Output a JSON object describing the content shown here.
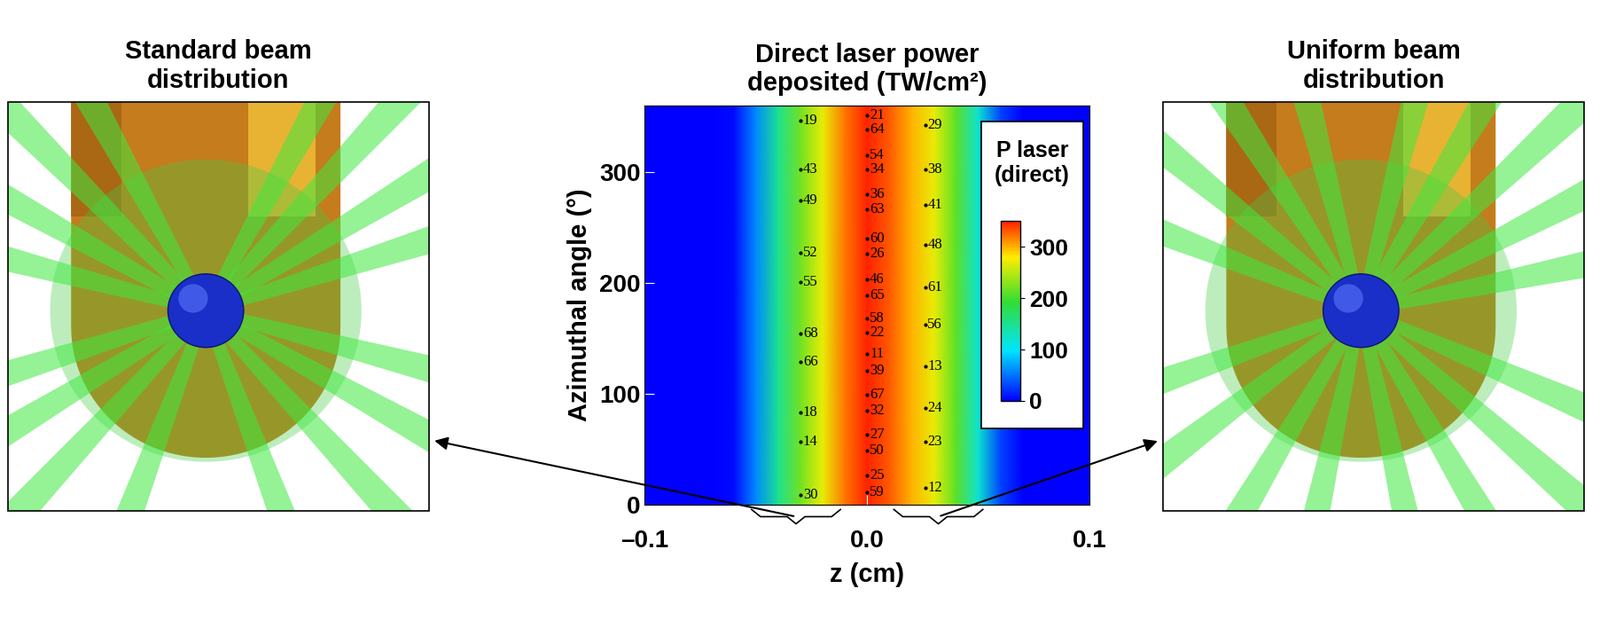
{
  "panels": {
    "left": {
      "title": "Standard beam\ndistribution"
    },
    "right": {
      "title": "Uniform beam\ndistribution"
    }
  },
  "chart_data": {
    "type": "heatmap",
    "title": "Direct laser power\ndeposited (TW/cm²)",
    "x_label": "z (cm)",
    "y_label": "Azimuthal angle (°)",
    "xlim": [
      -0.1,
      0.1
    ],
    "ylim": [
      0,
      360
    ],
    "xticks": [
      {
        "value": -0.1,
        "label": "–0.1"
      },
      {
        "value": 0,
        "label": "0.0"
      },
      0.1
    ],
    "yticks": [
      0,
      100,
      200,
      300
    ],
    "x": [
      -0.1,
      -0.09,
      -0.08,
      -0.07,
      -0.06,
      -0.05,
      -0.04,
      -0.03,
      -0.02,
      -0.01,
      0.0,
      0.01,
      0.02,
      0.03,
      0.04,
      0.05,
      0.06,
      0.07,
      0.08,
      0.09,
      0.1
    ],
    "y": [
      0,
      360
    ],
    "cells": [
      [
        0,
        0,
        0,
        0,
        5,
        60,
        150,
        220,
        270,
        320,
        350,
        330,
        300,
        270,
        210,
        120,
        30,
        0,
        0,
        0,
        0
      ],
      [
        0,
        0,
        0,
        0,
        5,
        60,
        150,
        220,
        270,
        320,
        350,
        330,
        300,
        270,
        210,
        120,
        30,
        0,
        0,
        0,
        0
      ]
    ],
    "colorbar": {
      "title": "P laser\n(direct)",
      "range": [
        0,
        350
      ],
      "ticks": [
        0,
        100,
        200,
        300
      ]
    },
    "annotations": [
      {
        "x": -0.03,
        "y": 346,
        "text": "19"
      },
      {
        "x": -0.03,
        "y": 302,
        "text": "43"
      },
      {
        "x": -0.03,
        "y": 274,
        "text": "49"
      },
      {
        "x": -0.03,
        "y": 227,
        "text": "52"
      },
      {
        "x": -0.03,
        "y": 201,
        "text": "55"
      },
      {
        "x": -0.03,
        "y": 154,
        "text": "68"
      },
      {
        "x": -0.03,
        "y": 129,
        "text": "66"
      },
      {
        "x": -0.03,
        "y": 83,
        "text": "18"
      },
      {
        "x": -0.03,
        "y": 57,
        "text": "14"
      },
      {
        "x": -0.03,
        "y": 9,
        "text": "30"
      },
      {
        "x": 0.0,
        "y": 351,
        "text": "21"
      },
      {
        "x": 0.0,
        "y": 338,
        "text": "64"
      },
      {
        "x": 0.0,
        "y": 315,
        "text": "54"
      },
      {
        "x": 0.0,
        "y": 302,
        "text": "34"
      },
      {
        "x": 0.0,
        "y": 280,
        "text": "36"
      },
      {
        "x": 0.0,
        "y": 266,
        "text": "63"
      },
      {
        "x": 0.0,
        "y": 240,
        "text": "60"
      },
      {
        "x": 0.0,
        "y": 226,
        "text": "26"
      },
      {
        "x": 0.0,
        "y": 203,
        "text": "46"
      },
      {
        "x": 0.0,
        "y": 189,
        "text": "65"
      },
      {
        "x": 0.0,
        "y": 168,
        "text": "58"
      },
      {
        "x": 0.0,
        "y": 155,
        "text": "22"
      },
      {
        "x": 0.0,
        "y": 136,
        "text": "11"
      },
      {
        "x": 0.0,
        "y": 121,
        "text": "39"
      },
      {
        "x": 0.0,
        "y": 99,
        "text": "67"
      },
      {
        "x": 0.0,
        "y": 85,
        "text": "32"
      },
      {
        "x": 0.0,
        "y": 63,
        "text": "27"
      },
      {
        "x": 0.0,
        "y": 49,
        "text": "50"
      },
      {
        "x": 0.0,
        "y": 26,
        "text": "25"
      },
      {
        "x": 0.0,
        "y": 11,
        "text": "59"
      },
      {
        "x": 0.026,
        "y": 342,
        "text": "29"
      },
      {
        "x": 0.026,
        "y": 302,
        "text": "38"
      },
      {
        "x": 0.026,
        "y": 270,
        "text": "41"
      },
      {
        "x": 0.026,
        "y": 234,
        "text": "48"
      },
      {
        "x": 0.026,
        "y": 196,
        "text": "61"
      },
      {
        "x": 0.026,
        "y": 162,
        "text": "56"
      },
      {
        "x": 0.026,
        "y": 125,
        "text": "13"
      },
      {
        "x": 0.026,
        "y": 87,
        "text": "24"
      },
      {
        "x": 0.026,
        "y": 57,
        "text": "23"
      },
      {
        "x": 0.026,
        "y": 15,
        "text": "12"
      }
    ]
  }
}
